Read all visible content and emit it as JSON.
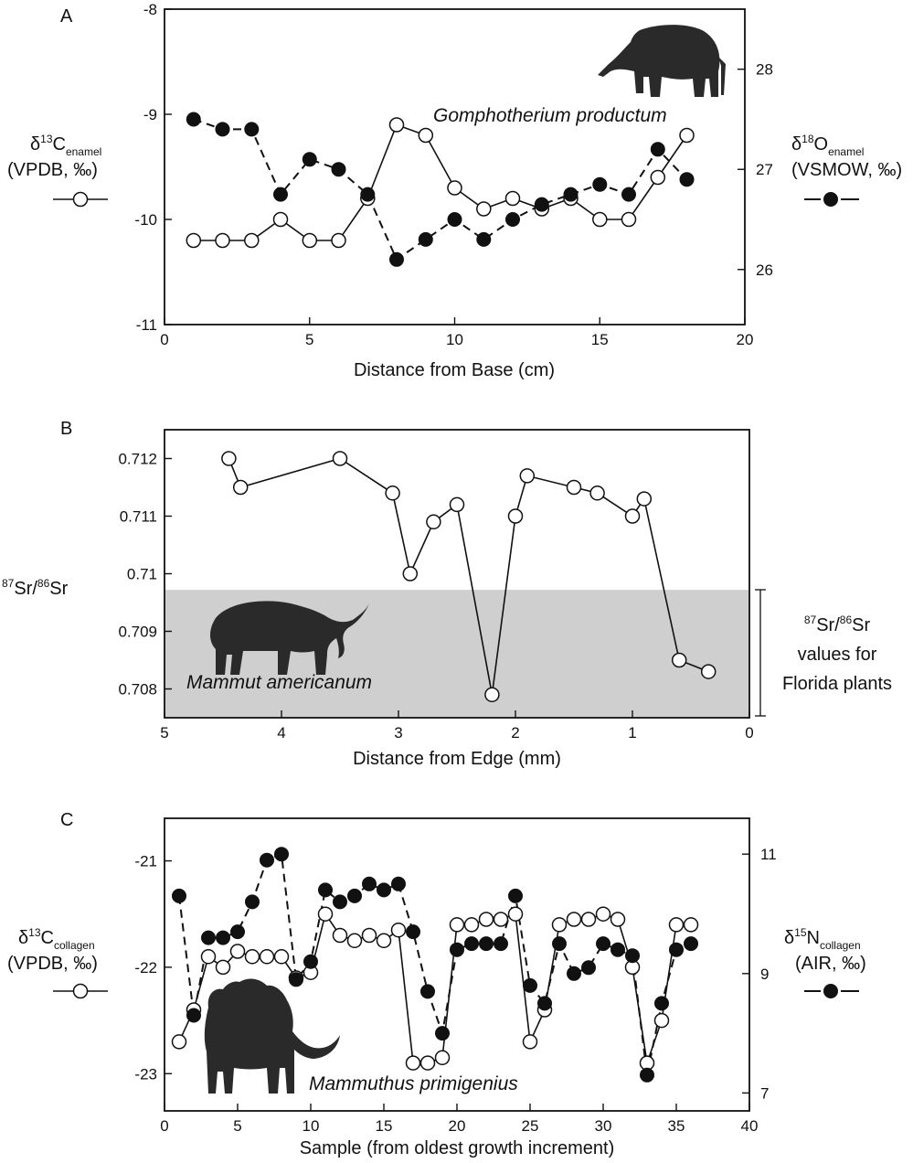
{
  "chart_data": [
    {
      "type": "line",
      "panel_label": "A",
      "species": "Gomphotherium productum",
      "xlabel": "Distance from Base (cm)",
      "xlim": [
        0,
        20
      ],
      "xticks": [
        0,
        5,
        10,
        15,
        20
      ],
      "ylim_left": [
        -11,
        -8
      ],
      "yticks_left": [
        -11,
        -10,
        -9,
        -8
      ],
      "ylabel_left": {
        "main": "δ",
        "sup": "13",
        "iso": "C",
        "sub": "enamel",
        "line2": "(VPDB, ‰)"
      },
      "ylim_right": [
        25.45,
        28.6
      ],
      "yticks_right": [
        26,
        27,
        28
      ],
      "ylabel_right": {
        "main": "δ",
        "sup": "18",
        "iso": "O",
        "sub": "enamel",
        "line2": "(VSMOW, ‰)"
      },
      "series": [
        {
          "axis": "left",
          "marker": "open",
          "line": "solid",
          "x": [
            1,
            2,
            3,
            4,
            5,
            6,
            7,
            8,
            9,
            10,
            11,
            12,
            13,
            14,
            15,
            16,
            17,
            18
          ],
          "y": [
            -10.2,
            -10.2,
            -10.2,
            -10.0,
            -10.2,
            -10.2,
            -9.8,
            -9.1,
            -9.2,
            -9.7,
            -9.9,
            -9.8,
            -9.9,
            -9.8,
            -10.0,
            -10.0,
            -9.6,
            -9.2
          ]
        },
        {
          "axis": "right",
          "marker": "filled",
          "line": "dashed",
          "x": [
            1,
            2,
            3,
            4,
            5,
            6,
            7,
            8,
            9,
            10,
            11,
            12,
            13,
            14,
            15,
            16,
            17,
            18
          ],
          "y": [
            27.5,
            27.4,
            27.4,
            26.75,
            27.1,
            27.0,
            26.75,
            26.1,
            26.3,
            26.5,
            26.3,
            26.5,
            26.65,
            26.75,
            26.85,
            26.75,
            27.2,
            26.9
          ]
        }
      ]
    },
    {
      "type": "line",
      "panel_label": "B",
      "species": "Mammut americanum",
      "xlabel": "Distance from Edge (mm)",
      "xlim": [
        5,
        0
      ],
      "xticks": [
        5,
        4,
        3,
        2,
        1,
        0
      ],
      "ylim": [
        0.7075,
        0.7125
      ],
      "yticks": [
        0.708,
        0.709,
        0.71,
        0.711,
        0.712
      ],
      "ytick_labels": [
        "0.708",
        "0.709",
        "0.71",
        "0.711",
        "0.712"
      ],
      "ylabel": {
        "sup1": "87",
        "a": "Sr/",
        "sup2": "86",
        "b": "Sr"
      },
      "band": {
        "ymin": 0.7075,
        "ymax": 0.70972
      },
      "band_label": {
        "sup1": "87",
        "a": "Sr/",
        "sup2": "86",
        "b": "Sr",
        "line2": "values for",
        "line3": "Florida plants"
      },
      "series": [
        {
          "marker": "open",
          "line": "solid",
          "x": [
            4.45,
            4.35,
            3.5,
            3.05,
            2.9,
            2.7,
            2.5,
            2.2,
            2.0,
            1.9,
            1.5,
            1.3,
            1.0,
            0.9,
            0.6,
            0.35
          ],
          "y": [
            0.712,
            0.7115,
            0.712,
            0.7114,
            0.71,
            0.7109,
            0.7112,
            0.7079,
            0.711,
            0.7117,
            0.7115,
            0.7114,
            0.711,
            0.7113,
            0.7085,
            0.7083
          ]
        }
      ]
    },
    {
      "type": "line",
      "panel_label": "C",
      "species": "Mammuthus primigenius",
      "xlabel": "Sample (from oldest growth increment)",
      "xlim": [
        0,
        40
      ],
      "xticks": [
        0,
        5,
        10,
        15,
        20,
        25,
        30,
        35,
        40
      ],
      "ylim_left": [
        -23.35,
        -20.6
      ],
      "yticks_left": [
        -23,
        -22,
        -21
      ],
      "ylabel_left": {
        "main": "δ",
        "sup": "13",
        "iso": "C",
        "sub": "collagen",
        "line2": "(VPDB, ‰)"
      },
      "ylim_right": [
        6.7,
        11.6
      ],
      "yticks_right": [
        7,
        9,
        11
      ],
      "ylabel_right": {
        "main": "δ",
        "sup": "15",
        "iso": "N",
        "sub": "collagen",
        "line2": "(AIR, ‰)"
      },
      "series": [
        {
          "axis": "left",
          "marker": "open",
          "line": "solid",
          "x": [
            1,
            2,
            3,
            4,
            5,
            6,
            7,
            8,
            9,
            10,
            11,
            12,
            13,
            14,
            15,
            16,
            17,
            18,
            19,
            20,
            21,
            22,
            23,
            24,
            25,
            26,
            27,
            28,
            29,
            30,
            31,
            32,
            33,
            34,
            35,
            36
          ],
          "y": [
            -22.7,
            -22.4,
            -21.9,
            -22.0,
            -21.85,
            -21.9,
            -21.9,
            -21.9,
            -22.1,
            -22.05,
            -21.5,
            -21.7,
            -21.75,
            -21.7,
            -21.75,
            -21.65,
            -22.9,
            -22.9,
            -22.85,
            -21.6,
            -21.6,
            -21.55,
            -21.55,
            -21.5,
            -22.7,
            -22.4,
            -21.6,
            -21.55,
            -21.55,
            -21.5,
            -21.55,
            -22.0,
            -22.9,
            -22.5,
            -21.6,
            -21.6
          ]
        },
        {
          "axis": "right",
          "marker": "filled",
          "line": "dashed",
          "x": [
            1,
            2,
            3,
            4,
            5,
            6,
            7,
            8,
            9,
            10,
            11,
            12,
            13,
            14,
            15,
            16,
            17,
            18,
            19,
            20,
            21,
            22,
            23,
            24,
            25,
            26,
            27,
            28,
            29,
            30,
            31,
            32,
            33,
            34,
            35,
            36
          ],
          "y": [
            10.3,
            8.3,
            9.6,
            9.6,
            9.7,
            10.2,
            10.9,
            11.0,
            8.9,
            9.2,
            10.4,
            10.2,
            10.3,
            10.5,
            10.4,
            10.5,
            9.7,
            8.7,
            8.0,
            9.4,
            9.5,
            9.5,
            9.5,
            10.3,
            8.8,
            8.5,
            9.5,
            9.0,
            9.1,
            9.5,
            9.4,
            9.3,
            7.3,
            8.5,
            9.4,
            9.5
          ]
        }
      ]
    }
  ]
}
